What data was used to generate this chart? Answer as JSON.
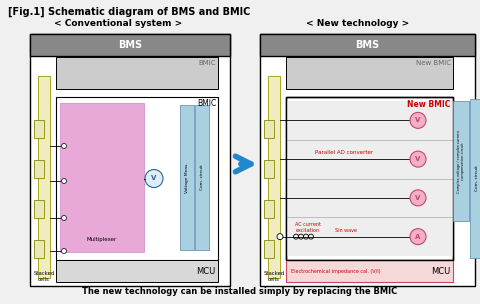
{
  "title": "[Fig.1] Schematic diagram of BMS and BMIC",
  "subtitle_left": "< Conventional system >",
  "subtitle_right": "< New technology >",
  "footer": "The new technology can be installed simply by replacing the BMIC",
  "bg_color": "#f0f0f0",
  "gray_header": "#888888",
  "white": "#ffffff",
  "light_gray": "#cccccc",
  "med_gray": "#b0b0b0",
  "pink_mux": "#e8a8d8",
  "light_blue": "#a8d0e0",
  "light_yellow": "#f0ecc0",
  "mcu_gray": "#d8d8d8",
  "arrow_blue": "#2288cc",
  "red": "#cc0000",
  "pink_circle": "#f0b0c8",
  "label_bms": "BMS",
  "label_bmic": "BMIC",
  "label_new_bmic_outer": "New BMIC",
  "label_new_bmic_inner": "New BMIC",
  "label_mcu": "MCU",
  "label_multiplexer": "Multiplexer",
  "label_stacked": "Stacked\ncells",
  "label_voltage_meas": "Voltage Meas.",
  "label_com_circuit": "Com. circuit",
  "label_parallel_ad": "Parallel AD converter",
  "label_ac_current": "AC current\nexcitation",
  "label_sin_wave": "Sin wave",
  "label_electrochemical": "Electrochemical impedance cal. (V/I)",
  "label_complex": "Complex voltage / complex current\ncompensation circuit"
}
